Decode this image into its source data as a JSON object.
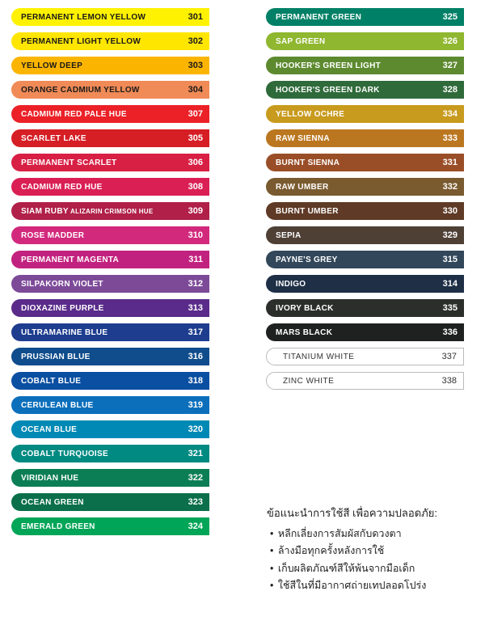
{
  "left": [
    {
      "name": "PERMANENT LEMON YELLOW",
      "code": "301",
      "bg": "#fff200",
      "text": "#1a1a1a",
      "codeColor": "#1a1a1a"
    },
    {
      "name": "PERMANENT LIGHT YELLOW",
      "code": "302",
      "bg": "#ffe600",
      "text": "#1a1a1a",
      "codeColor": "#1a1a1a"
    },
    {
      "name": "YELLOW DEEP",
      "code": "303",
      "bg": "#fbb500",
      "text": "#1a1a1a",
      "codeColor": "#1a1a1a"
    },
    {
      "name": "ORANGE CADMIUM YELLOW",
      "code": "304",
      "bg": "#f08a56",
      "text": "#1a1a1a",
      "codeColor": "#1a1a1a"
    },
    {
      "name": "CADMIUM RED PALE HUE",
      "code": "307",
      "bg": "#eb2127",
      "text": "#ffffff",
      "codeColor": "#ffffff"
    },
    {
      "name": "SCARLET LAKE",
      "code": "305",
      "bg": "#d61e25",
      "text": "#ffffff",
      "codeColor": "#ffffff"
    },
    {
      "name": "PERMANENT SCARLET",
      "code": "306",
      "bg": "#d81f44",
      "text": "#ffffff",
      "codeColor": "#ffffff"
    },
    {
      "name": "CADMIUM RED HUE",
      "code": "308",
      "bg": "#da1f55",
      "text": "#ffffff",
      "codeColor": "#ffffff"
    },
    {
      "name": "SIAM RUBY",
      "sub": " ALIZARIN CRIMSON HUE",
      "code": "309",
      "bg": "#b02049",
      "text": "#ffffff",
      "codeColor": "#ffffff"
    },
    {
      "name": "ROSE MADDER",
      "code": "310",
      "bg": "#d2297d",
      "text": "#ffffff",
      "codeColor": "#ffffff"
    },
    {
      "name": "PERMANENT MAGENTA",
      "code": "311",
      "bg": "#c2227f",
      "text": "#ffffff",
      "codeColor": "#ffffff"
    },
    {
      "name": "SILPAKORN VIOLET",
      "code": "312",
      "bg": "#7d4a98",
      "text": "#ffffff",
      "codeColor": "#ffffff"
    },
    {
      "name": "DIOXAZINE PURPLE",
      "code": "313",
      "bg": "#5a2b8a",
      "text": "#ffffff",
      "codeColor": "#ffffff"
    },
    {
      "name": "ULTRAMARINE BLUE",
      "code": "317",
      "bg": "#1e3d8f",
      "text": "#ffffff",
      "codeColor": "#ffffff"
    },
    {
      "name": "PRUSSIAN BLUE",
      "code": "316",
      "bg": "#0f4d8c",
      "text": "#ffffff",
      "codeColor": "#ffffff"
    },
    {
      "name": "COBALT BLUE",
      "code": "318",
      "bg": "#0a4fa1",
      "text": "#ffffff",
      "codeColor": "#ffffff"
    },
    {
      "name": "CERULEAN BLUE",
      "code": "319",
      "bg": "#0c6fbc",
      "text": "#ffffff",
      "codeColor": "#ffffff"
    },
    {
      "name": "OCEAN BLUE",
      "code": "320",
      "bg": "#0089b4",
      "text": "#ffffff",
      "codeColor": "#ffffff"
    },
    {
      "name": "COBALT TURQUOISE",
      "code": "321",
      "bg": "#008a82",
      "text": "#ffffff",
      "codeColor": "#ffffff"
    },
    {
      "name": "VIRIDIAN HUE",
      "code": "322",
      "bg": "#0c7e55",
      "text": "#ffffff",
      "codeColor": "#ffffff"
    },
    {
      "name": "OCEAN GREEN",
      "code": "323",
      "bg": "#0a6f4a",
      "text": "#ffffff",
      "codeColor": "#ffffff"
    },
    {
      "name": "EMERALD GREEN",
      "code": "324",
      "bg": "#00a557",
      "text": "#ffffff",
      "codeColor": "#ffffff"
    }
  ],
  "right": [
    {
      "name": "PERMANENT GREEN",
      "code": "325",
      "bg": "#008066",
      "text": "#ffffff",
      "codeColor": "#ffffff"
    },
    {
      "name": "SAP GREEN",
      "code": "326",
      "bg": "#8fb72f",
      "text": "#ffffff",
      "codeColor": "#ffffff"
    },
    {
      "name": "HOOKER'S GREEN LIGHT",
      "code": "327",
      "bg": "#5d8a2f",
      "text": "#ffffff",
      "codeColor": "#ffffff"
    },
    {
      "name": "HOOKER'S GREEN DARK",
      "code": "328",
      "bg": "#2f6a3a",
      "text": "#ffffff",
      "codeColor": "#ffffff"
    },
    {
      "name": "YELLOW OCHRE",
      "code": "334",
      "bg": "#c89a1e",
      "text": "#ffffff",
      "codeColor": "#ffffff"
    },
    {
      "name": "RAW SIENNA",
      "code": "333",
      "bg": "#bb7720",
      "text": "#ffffff",
      "codeColor": "#ffffff"
    },
    {
      "name": "BURNT SIENNA",
      "code": "331",
      "bg": "#9a4e28",
      "text": "#ffffff",
      "codeColor": "#ffffff"
    },
    {
      "name": "RAW UMBER",
      "code": "332",
      "bg": "#7a5a2f",
      "text": "#ffffff",
      "codeColor": "#ffffff"
    },
    {
      "name": "BURNT UMBER",
      "code": "330",
      "bg": "#5f3a26",
      "text": "#ffffff",
      "codeColor": "#ffffff"
    },
    {
      "name": "SEPIA",
      "code": "329",
      "bg": "#4f4036",
      "text": "#ffffff",
      "codeColor": "#ffffff"
    },
    {
      "name": "PAYNE'S GREY",
      "code": "315",
      "bg": "#32475a",
      "text": "#ffffff",
      "codeColor": "#ffffff"
    },
    {
      "name": "INDIGO",
      "code": "314",
      "bg": "#1e2f46",
      "text": "#ffffff",
      "codeColor": "#ffffff"
    },
    {
      "name": "IVORY BLACK",
      "code": "335",
      "bg": "#2b2e2b",
      "text": "#ffffff",
      "codeColor": "#ffffff"
    },
    {
      "name": "MARS BLACK",
      "code": "336",
      "bg": "#1f2120",
      "text": "#ffffff",
      "codeColor": "#ffffff"
    },
    {
      "name": "TITANIUM WHITE",
      "code": "337",
      "bg": "#ffffff",
      "text": "#333333",
      "codeColor": "#333333",
      "bordered": true
    },
    {
      "name": "ZINC  WHITE",
      "code": "338",
      "bg": "#ffffff",
      "text": "#333333",
      "codeColor": "#333333",
      "bordered": true
    }
  ],
  "instructions": {
    "title": "ข้อแนะนำการใช้สี เพื่อความปลอดภัย:",
    "items": [
      "หลีกเลี่ยงการสัมผัสกับดวงตา",
      "ล้างมือทุกครั้งหลังการใช้",
      "เก็บผลิตภัณฑ์สีให้พ้นจากมือเด็ก",
      "ใช้สีในที่มีอากาศถ่ายเทปลอดโปร่ง"
    ]
  }
}
